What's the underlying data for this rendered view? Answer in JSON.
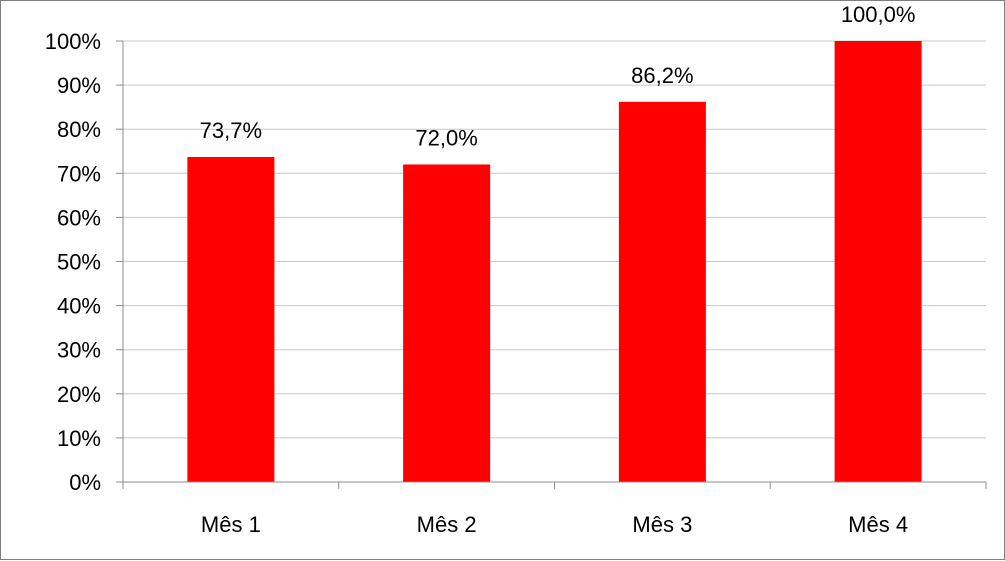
{
  "chart_data": {
    "type": "bar",
    "categories": [
      "Mês 1",
      "Mês 2",
      "Mês 3",
      "Mês 4"
    ],
    "values": [
      73.7,
      72.0,
      86.2,
      100.0
    ],
    "data_labels": [
      "73,7%",
      "72,0%",
      "86,2%",
      "100,0%"
    ],
    "title": "",
    "xlabel": "",
    "ylabel": "",
    "ylim": [
      0,
      100
    ],
    "ytick_values": [
      0,
      10,
      20,
      30,
      40,
      50,
      60,
      70,
      80,
      90,
      100
    ],
    "ytick_labels": [
      "0%",
      "10%",
      "20%",
      "30%",
      "40%",
      "50%",
      "60%",
      "70%",
      "80%",
      "90%",
      "100%"
    ],
    "grid": true,
    "legend": "none",
    "bar_color": "#ff0000",
    "grid_color": "#c8c8c8",
    "axis_color": "#8c8c8c"
  }
}
